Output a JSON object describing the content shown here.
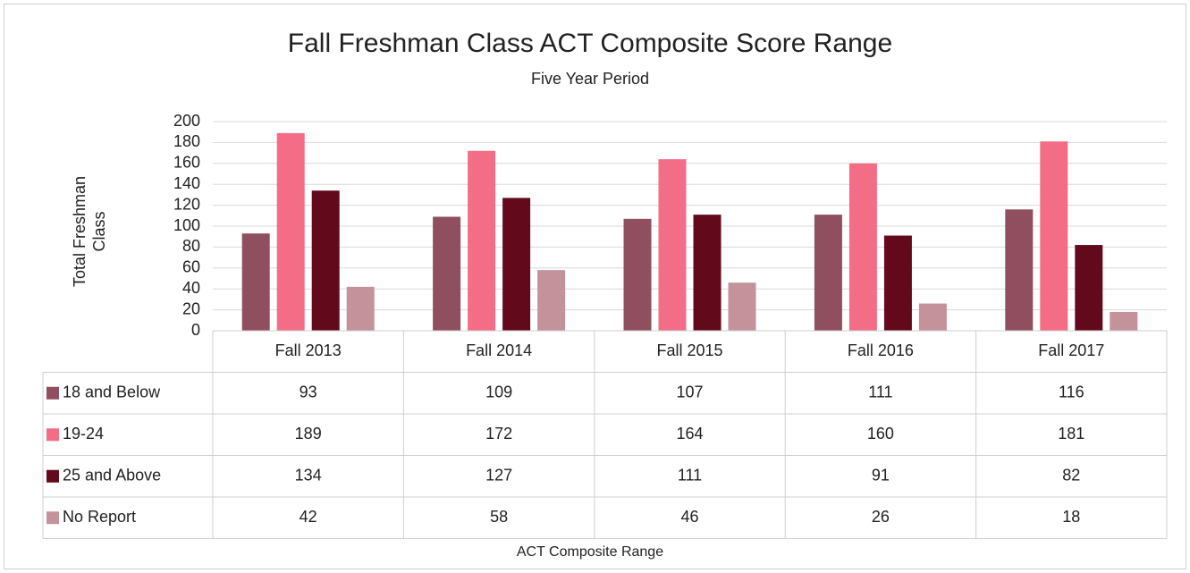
{
  "chart_data": {
    "type": "bar",
    "title": "Fall Freshman Class ACT Composite Score Range",
    "subtitle": "Five Year Period",
    "y_label": "Total Freshman Class",
    "x_label": "ACT Composite Range",
    "categories": [
      "Fall 2013",
      "Fall 2014",
      "Fall 2015",
      "Fall 2016",
      "Fall 2017"
    ],
    "series": [
      {
        "name": "18 and Below",
        "color": "#8f4f5e",
        "values": [
          93,
          109,
          107,
          111,
          116
        ]
      },
      {
        "name": "19-24",
        "color": "#f26d85",
        "values": [
          189,
          172,
          164,
          160,
          181
        ]
      },
      {
        "name": "25 and Above",
        "color": "#620a1c",
        "values": [
          134,
          127,
          111,
          91,
          82
        ]
      },
      {
        "name": "No Report",
        "color": "#c3929b",
        "values": [
          42,
          58,
          46,
          26,
          18
        ]
      }
    ],
    "ylim": [
      0,
      200
    ],
    "yticks": [
      0,
      20,
      40,
      60,
      80,
      100,
      120,
      140,
      160,
      180,
      200
    ],
    "grid": true,
    "data_table": true
  }
}
